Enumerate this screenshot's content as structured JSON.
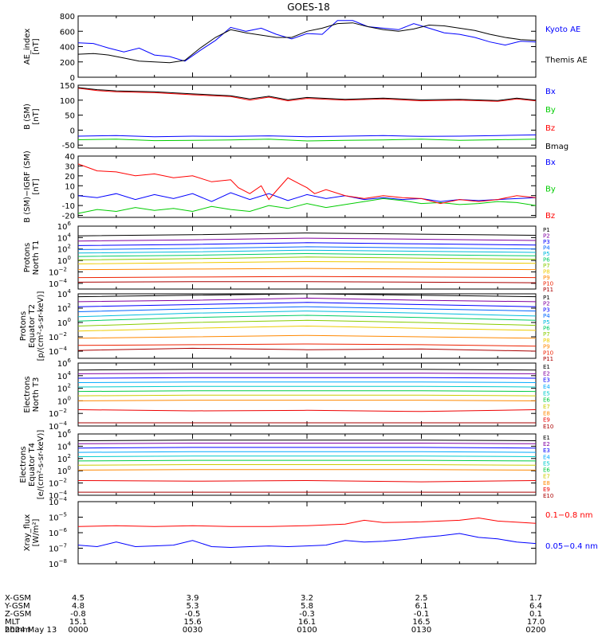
{
  "title": "GOES-18",
  "time_axis": {
    "rows": [
      "X-GSM",
      "Y-GSM",
      "Z-GSM",
      "MLT",
      "hhmm"
    ],
    "columns": [
      {
        "time": "0000",
        "values": [
          "4.5",
          "4.8",
          "-0.8",
          "15.1",
          "0000"
        ]
      },
      {
        "time": "0030",
        "values": [
          "3.9",
          "5.3",
          "-0.5",
          "15.6",
          "0030"
        ]
      },
      {
        "time": "0100",
        "values": [
          "3.2",
          "5.8",
          "-0.3",
          "16.1",
          "0100"
        ]
      },
      {
        "time": "0130",
        "values": [
          "2.5",
          "6.1",
          "-0.1",
          "16.5",
          "0130"
        ]
      },
      {
        "time": "0200",
        "values": [
          "1.7",
          "6.4",
          "0.1",
          "17.0",
          "0200"
        ]
      }
    ],
    "date": "2024 May 13"
  },
  "colors": {
    "black": "#000000",
    "blue": "#0000ff",
    "green": "#00cc00",
    "red": "#ff0000",
    "darkred": "#c00000"
  },
  "chart_data": [
    {
      "type": "line",
      "id": "ae",
      "ylabel": [
        "AE_index",
        "[nT]"
      ],
      "ylim": [
        0,
        800
      ],
      "scale": "linear",
      "ticks": [
        0,
        200,
        400,
        600,
        800
      ],
      "series": [
        {
          "name": "Kyoto AE",
          "color": "#0000ff",
          "x": [
            0,
            4,
            8,
            12,
            16,
            20,
            24,
            28,
            32,
            36,
            40,
            44,
            48,
            52,
            56,
            60,
            64,
            68,
            72,
            76,
            80,
            84,
            88,
            92,
            96,
            100,
            104,
            108,
            112,
            116,
            120
          ],
          "y": [
            450,
            440,
            380,
            330,
            380,
            290,
            270,
            210,
            350,
            480,
            650,
            600,
            640,
            560,
            500,
            570,
            560,
            740,
            740,
            660,
            640,
            620,
            700,
            640,
            580,
            560,
            520,
            460,
            420,
            470,
            460
          ]
        },
        {
          "name": "Themis AE",
          "color": "#000000",
          "x": [
            0,
            4,
            8,
            12,
            16,
            20,
            24,
            28,
            32,
            36,
            40,
            44,
            48,
            52,
            56,
            60,
            64,
            68,
            72,
            76,
            80,
            84,
            88,
            92,
            96,
            100,
            104,
            108,
            112,
            116,
            120
          ],
          "y": [
            300,
            310,
            290,
            250,
            210,
            200,
            190,
            220,
            380,
            520,
            620,
            580,
            550,
            520,
            520,
            600,
            640,
            700,
            710,
            660,
            620,
            600,
            630,
            680,
            670,
            640,
            610,
            560,
            520,
            490,
            480
          ]
        }
      ]
    },
    {
      "type": "line",
      "id": "bsm",
      "ylabel": [
        "B (SM)",
        "[nT]"
      ],
      "ylim": [
        -60,
        150
      ],
      "scale": "linear",
      "ticks": [
        -50,
        0,
        50,
        100,
        150
      ],
      "series": [
        {
          "name": "Bx",
          "color": "#0000ff",
          "x": [
            0,
            10,
            20,
            30,
            40,
            50,
            60,
            70,
            80,
            90,
            100,
            110,
            120
          ],
          "y": [
            -20,
            -18,
            -22,
            -20,
            -21,
            -19,
            -22,
            -20,
            -18,
            -21,
            -20,
            -18,
            -16
          ]
        },
        {
          "name": "By",
          "color": "#00cc00",
          "x": [
            0,
            10,
            20,
            30,
            40,
            50,
            60,
            70,
            80,
            90,
            100,
            110,
            120
          ],
          "y": [
            -32,
            -30,
            -35,
            -34,
            -33,
            -30,
            -36,
            -34,
            -33,
            -30,
            -34,
            -32,
            -30
          ]
        },
        {
          "name": "Bz",
          "color": "#ff0000",
          "x": [
            0,
            5,
            10,
            20,
            30,
            40,
            45,
            50,
            55,
            60,
            70,
            80,
            90,
            100,
            110,
            115,
            120
          ],
          "y": [
            140,
            132,
            128,
            125,
            118,
            112,
            100,
            110,
            98,
            106,
            100,
            104,
            98,
            100,
            96,
            104,
            98
          ]
        },
        {
          "name": "Bmag",
          "color": "#000000",
          "x": [
            0,
            5,
            10,
            20,
            30,
            40,
            45,
            50,
            55,
            60,
            70,
            80,
            90,
            100,
            110,
            115,
            120
          ],
          "y": [
            142,
            135,
            131,
            128,
            121,
            115,
            104,
            113,
            101,
            109,
            103,
            107,
            101,
            103,
            99,
            107,
            100
          ]
        }
      ]
    },
    {
      "type": "line",
      "id": "bsm-igrf",
      "ylabel": [
        "B (SM)−IGRF (SM)",
        "[nT]"
      ],
      "ylim": [
        -22,
        40
      ],
      "scale": "linear",
      "ticks": [
        -20,
        -10,
        0,
        10,
        20,
        30,
        40
      ],
      "series": [
        {
          "name": "Bx",
          "color": "#0000ff",
          "x": [
            0,
            5,
            10,
            15,
            20,
            25,
            30,
            35,
            40,
            45,
            50,
            55,
            60,
            65,
            70,
            75,
            80,
            85,
            90,
            95,
            100,
            105,
            110,
            115,
            120
          ],
          "y": [
            0,
            -2,
            2,
            -4,
            1,
            -3,
            2,
            -6,
            3,
            -4,
            2,
            -5,
            1,
            -3,
            0,
            -4,
            -2,
            -4,
            -3,
            -6,
            -4,
            -5,
            -4,
            -3,
            -2
          ]
        },
        {
          "name": "By",
          "color": "#00cc00",
          "x": [
            0,
            5,
            10,
            15,
            20,
            25,
            30,
            35,
            40,
            45,
            50,
            55,
            60,
            65,
            70,
            75,
            80,
            85,
            90,
            95,
            100,
            105,
            110,
            115,
            120
          ],
          "y": [
            -18,
            -14,
            -16,
            -12,
            -15,
            -13,
            -16,
            -11,
            -14,
            -16,
            -10,
            -13,
            -8,
            -12,
            -9,
            -6,
            -3,
            -5,
            -8,
            -7,
            -9,
            -8,
            -6,
            -7,
            -10
          ]
        },
        {
          "name": "Bz",
          "color": "#ff0000",
          "x": [
            0,
            5,
            10,
            15,
            20,
            25,
            30,
            35,
            40,
            42,
            45,
            48,
            50,
            52,
            55,
            58,
            60,
            62,
            65,
            70,
            75,
            80,
            85,
            90,
            95,
            100,
            105,
            110,
            115,
            120
          ],
          "y": [
            32,
            25,
            24,
            20,
            22,
            18,
            20,
            14,
            16,
            8,
            2,
            10,
            -4,
            5,
            18,
            12,
            8,
            2,
            6,
            0,
            -3,
            0,
            -2,
            -3,
            -8,
            -4,
            -6,
            -4,
            0,
            -2
          ]
        }
      ]
    },
    {
      "type": "line",
      "id": "protons-t1",
      "ylabel": [
        "Protons",
        "North T1"
      ],
      "ylim": [
        -5,
        6
      ],
      "scale": "log",
      "ticks": [
        "10^6",
        "10^4",
        "10^2",
        "10^0",
        "10^-2",
        "10^-4"
      ],
      "series_labels": [
        "P1",
        "P2",
        "P3",
        "P4",
        "P5",
        "P6",
        "P7",
        "P8",
        "P9",
        "P10",
        "P11"
      ],
      "series_colors": [
        "#000000",
        "#8000a0",
        "#0000ff",
        "#0066ff",
        "#00bbdd",
        "#00cc66",
        "#88cc00",
        "#eecc00",
        "#ff8800",
        "#ee2200",
        "#aa0000"
      ],
      "x": [
        0,
        30,
        60,
        90,
        120
      ],
      "y_log": [
        [
          4.3,
          4.5,
          4.8,
          4.6,
          4.4
        ],
        [
          3.4,
          3.6,
          3.9,
          3.7,
          3.5
        ],
        [
          2.6,
          2.8,
          3.1,
          2.9,
          2.7
        ],
        [
          1.9,
          2.1,
          2.4,
          2.2,
          2.0
        ],
        [
          1.3,
          1.5,
          1.8,
          1.6,
          1.4
        ],
        [
          0.7,
          0.9,
          1.2,
          1.0,
          0.8
        ],
        [
          0.1,
          0.3,
          0.6,
          0.4,
          0.2
        ],
        [
          -0.6,
          -0.4,
          -0.2,
          -0.3,
          -0.5
        ],
        [
          -1.6,
          -1.5,
          -1.4,
          -1.5,
          -1.6
        ],
        [
          -3.0,
          -2.9,
          -2.8,
          -2.9,
          -3.0
        ],
        [
          -3.8,
          -3.7,
          -3.7,
          -3.8,
          -3.9
        ]
      ]
    },
    {
      "type": "line",
      "id": "protons-t2",
      "ylabel": [
        "Protons",
        "Equator T2",
        "[p/(cm²-s-sr-keV)]"
      ],
      "ylim": [
        -5,
        4
      ],
      "scale": "log",
      "ticks": [
        "10^4",
        "10^2",
        "10^0",
        "10^-2",
        "10^-4"
      ],
      "series_labels": [
        "P1",
        "P2",
        "P3",
        "P4",
        "P5",
        "P6",
        "P7",
        "P8",
        "P9",
        "P10",
        "P11"
      ],
      "series_colors": [
        "#000000",
        "#8000a0",
        "#0000ff",
        "#0066ff",
        "#00bbdd",
        "#00cc66",
        "#88cc00",
        "#eecc00",
        "#ff8800",
        "#ee2200",
        "#aa0000"
      ],
      "x": [
        0,
        30,
        60,
        90,
        120
      ],
      "y_log": [
        [
          3.6,
          3.8,
          4.0,
          3.8,
          3.6
        ],
        [
          2.9,
          3.1,
          3.4,
          3.1,
          2.9
        ],
        [
          2.2,
          2.5,
          2.8,
          2.5,
          2.2
        ],
        [
          1.5,
          1.9,
          2.2,
          1.9,
          1.6
        ],
        [
          0.8,
          1.3,
          1.6,
          1.3,
          0.9
        ],
        [
          0.2,
          0.7,
          1.0,
          0.7,
          0.3
        ],
        [
          -0.5,
          0.0,
          0.3,
          0.0,
          -0.4
        ],
        [
          -1.2,
          -0.8,
          -0.5,
          -0.8,
          -1.1
        ],
        [
          -2.2,
          -2.0,
          -1.8,
          -2.0,
          -2.2
        ],
        [
          -3.2,
          -3.1,
          -3.0,
          -3.1,
          -3.3
        ],
        [
          -3.9,
          -3.6,
          -3.8,
          -3.7,
          -4.0
        ]
      ]
    },
    {
      "type": "line",
      "id": "electrons-t3",
      "ylabel": [
        "Electrons",
        "North T3"
      ],
      "ylim": [
        -4,
        6
      ],
      "scale": "log",
      "ticks": [
        "10^6",
        "10^4",
        "10^2",
        "10^0",
        "10^-2",
        "10^-4"
      ],
      "series_labels": [
        "E1",
        "E2",
        "E3",
        "E4",
        "E5",
        "E6",
        "E7",
        "E8",
        "E9",
        "E10"
      ],
      "series_colors": [
        "#000000",
        "#8000a0",
        "#0000ff",
        "#00aaff",
        "#00cccc",
        "#00cc44",
        "#cccc00",
        "#ff8800",
        "#ee0000",
        "#aa0000"
      ],
      "x": [
        0,
        30,
        60,
        90,
        120
      ],
      "y_log": [
        [
          4.9,
          5.0,
          5.0,
          5.0,
          4.9
        ],
        [
          4.3,
          4.4,
          4.4,
          4.4,
          4.3
        ],
        [
          3.6,
          3.7,
          3.7,
          3.7,
          3.6
        ],
        [
          2.9,
          3.0,
          3.0,
          3.0,
          2.9
        ],
        [
          2.2,
          2.3,
          2.3,
          2.3,
          2.2
        ],
        [
          1.5,
          1.6,
          1.6,
          1.6,
          1.5
        ],
        [
          0.8,
          0.9,
          0.9,
          0.9,
          0.8
        ],
        [
          0.0,
          0.1,
          0.1,
          0.1,
          0.0
        ],
        [
          -1.4,
          -1.6,
          -1.5,
          -1.7,
          -1.4
        ],
        [
          -3.5,
          -3.5,
          -3.5,
          -3.5,
          -3.5
        ]
      ]
    },
    {
      "type": "line",
      "id": "electrons-t4",
      "ylabel": [
        "Electrons",
        "Equator T4",
        "[e/(cm²-s-sr-keV)]"
      ],
      "ylim": [
        -4,
        6
      ],
      "scale": "log",
      "ticks": [
        "10^6",
        "10^4",
        "10^2",
        "10^0",
        "10^-2",
        "10^-4"
      ],
      "series_labels": [
        "E1",
        "E2",
        "E3",
        "E4",
        "E5",
        "E6",
        "E7",
        "E8",
        "E9",
        "E10"
      ],
      "series_colors": [
        "#000000",
        "#8000a0",
        "#0000ff",
        "#00aaff",
        "#00cccc",
        "#00cc44",
        "#cccc00",
        "#ff8800",
        "#ee0000",
        "#aa0000"
      ],
      "x": [
        0,
        30,
        60,
        90,
        120
      ],
      "y_log": [
        [
          4.9,
          5.0,
          5.0,
          5.0,
          4.9
        ],
        [
          4.4,
          4.5,
          4.5,
          4.5,
          4.4
        ],
        [
          3.7,
          3.8,
          3.8,
          3.8,
          3.7
        ],
        [
          3.0,
          3.1,
          3.1,
          3.1,
          3.0
        ],
        [
          2.3,
          2.4,
          2.4,
          2.4,
          2.3
        ],
        [
          1.6,
          1.7,
          1.7,
          1.7,
          1.6
        ],
        [
          0.9,
          1.0,
          1.0,
          1.0,
          0.9
        ],
        [
          0.1,
          0.2,
          0.2,
          0.2,
          0.1
        ],
        [
          -1.6,
          -1.7,
          -1.6,
          -1.8,
          -1.6
        ],
        [
          -3.5,
          -3.5,
          -3.5,
          -3.5,
          -3.5
        ]
      ]
    },
    {
      "type": "line",
      "id": "xray",
      "ylabel": [
        "Xray_flux",
        "[W/m²]"
      ],
      "ylim": [
        -8,
        -4
      ],
      "scale": "log",
      "ticks": [
        "10^-4",
        "10^-5",
        "10^-6",
        "10^-7",
        "10^-8"
      ],
      "series": [
        {
          "name": "0.1−0.8 nm",
          "color": "#ff0000",
          "x": [
            0,
            10,
            20,
            30,
            40,
            50,
            60,
            70,
            75,
            80,
            90,
            100,
            105,
            110,
            120
          ],
          "y_log": [
            -5.6,
            -5.55,
            -5.6,
            -5.55,
            -5.6,
            -5.6,
            -5.55,
            -5.45,
            -5.2,
            -5.35,
            -5.3,
            -5.2,
            -5.05,
            -5.25,
            -5.4
          ]
        },
        {
          "name": "0.05−0.4 nm",
          "color": "#0000ff",
          "x": [
            0,
            5,
            10,
            15,
            20,
            25,
            30,
            35,
            40,
            45,
            50,
            55,
            60,
            65,
            70,
            75,
            80,
            85,
            90,
            95,
            100,
            105,
            110,
            115,
            120
          ],
          "y_log": [
            -6.8,
            -6.9,
            -6.6,
            -6.9,
            -6.85,
            -6.8,
            -6.5,
            -6.9,
            -6.95,
            -6.9,
            -6.85,
            -6.9,
            -6.85,
            -6.8,
            -6.5,
            -6.6,
            -6.55,
            -6.45,
            -6.3,
            -6.2,
            -6.05,
            -6.3,
            -6.4,
            -6.6,
            -6.7
          ]
        }
      ]
    }
  ]
}
